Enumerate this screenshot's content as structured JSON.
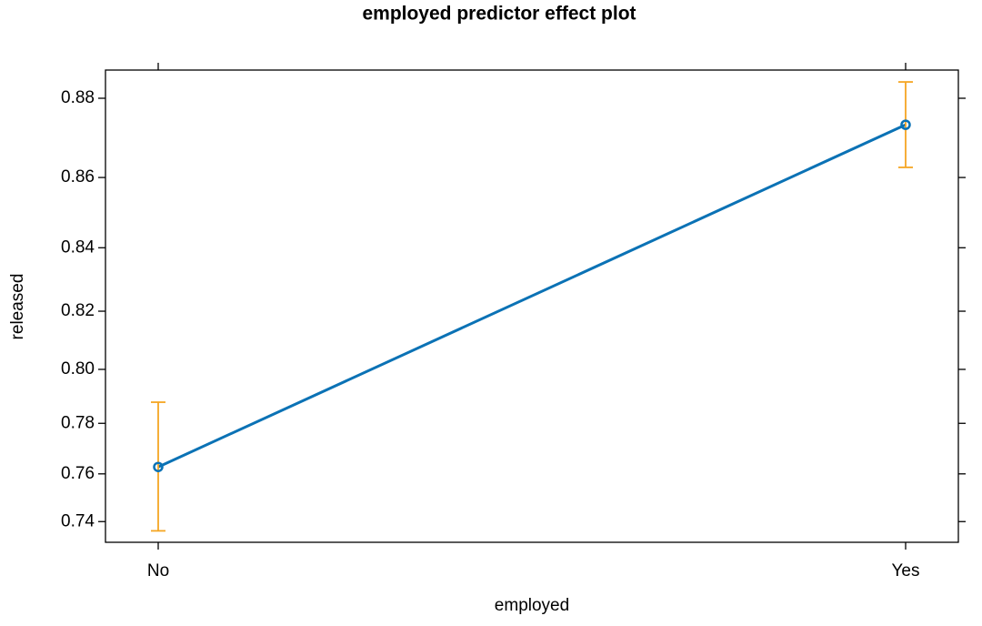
{
  "chart_data": {
    "type": "line",
    "title": "employed predictor effect plot",
    "x_label": "employed",
    "y_label": "released",
    "categories": [
      "No",
      "Yes"
    ],
    "values": [
      0.7628,
      0.8736
    ],
    "lower": [
      0.736,
      0.8627
    ],
    "upper": [
      0.788,
      0.8838
    ],
    "color": "#0b72b5",
    "error_color": "#f5a623",
    "y_scale": "logit",
    "ylim": [
      0.731,
      0.8865
    ],
    "yticks": [
      0.74,
      0.76,
      0.78,
      0.8,
      {
        "value": 0.8,
        "label": "0.80"
      },
      0.82,
      0.84,
      0.86,
      0.88
    ]
  }
}
